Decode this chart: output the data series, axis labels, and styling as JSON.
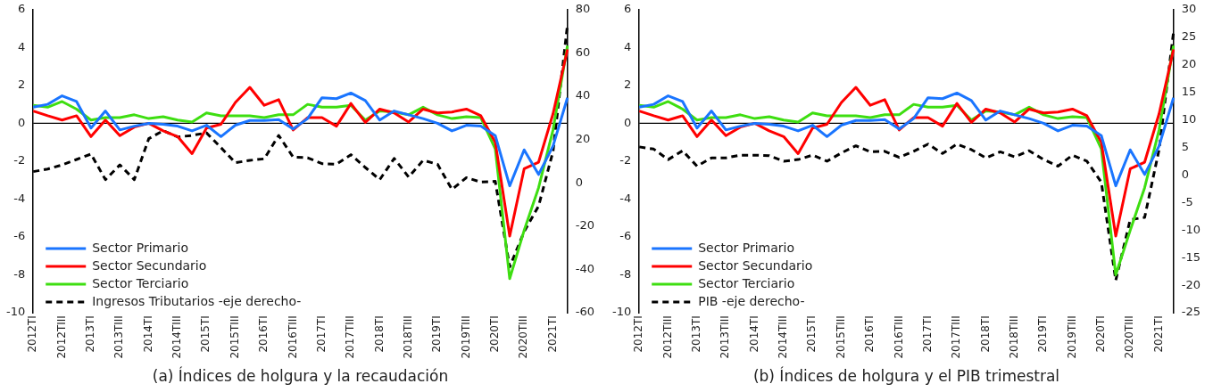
{
  "chart_data": [
    {
      "type": "line",
      "title": "(a) Índices de holgura y la recaudación",
      "categories": [
        "2012TI",
        null,
        "2012TIII",
        null,
        "2013TI",
        null,
        "2013TIII",
        null,
        "2014TI",
        null,
        "2014TIII",
        null,
        "2015TI",
        null,
        "2015TIII",
        null,
        "2016TI",
        null,
        "2016TIII",
        null,
        "2017TI",
        null,
        "2017TIII",
        null,
        "2018TI",
        null,
        "2018TIII",
        null,
        "2019TI",
        null,
        "2019TIII",
        null,
        "2020TI",
        null,
        "2020TIII",
        null,
        "2021TI",
        null
      ],
      "series": [
        {
          "name": "Sector Primario",
          "color": "#1a75ff",
          "values": [
            0.85,
            1.0,
            1.45,
            1.15,
            -0.25,
            0.65,
            -0.35,
            -0.15,
            0,
            -0.05,
            -0.15,
            -0.4,
            -0.1,
            -0.7,
            -0.1,
            0.15,
            0.15,
            0.2,
            -0.3,
            0.25,
            1.35,
            1.3,
            1.6,
            1.2,
            0.17,
            0.65,
            0.45,
            0.25,
            0,
            -0.4,
            -0.1,
            -0.15,
            -0.65,
            -3.3,
            -1.4,
            -2.7,
            -1.2,
            1.35
          ]
        },
        {
          "name": "Sector Secundario",
          "color": "#ff0000",
          "values": [
            0.65,
            0.4,
            0.17,
            0.4,
            -0.7,
            0.17,
            -0.65,
            -0.2,
            0,
            -0.4,
            -0.7,
            -1.6,
            -0.25,
            -0.05,
            1.1,
            1.9,
            0.95,
            1.25,
            -0.35,
            0.3,
            0.3,
            -0.15,
            1.05,
            0.05,
            0.75,
            0.55,
            0.07,
            0.75,
            0.55,
            0.6,
            0.75,
            0.4,
            -1.0,
            -5.95,
            -2.4,
            -2.05,
            0.5,
            3.9
          ]
        },
        {
          "name": "Sector Terciario",
          "color": "#3ede11",
          "values": [
            0.95,
            0.85,
            1.15,
            0.75,
            0.17,
            0.3,
            0.3,
            0.45,
            0.25,
            0.35,
            0.17,
            0.07,
            0.55,
            0.4,
            0.4,
            0.4,
            0.3,
            0.45,
            0.45,
            1.0,
            0.85,
            0.85,
            0.95,
            0.17,
            0.65,
            0.6,
            0.45,
            0.85,
            0.45,
            0.25,
            0.35,
            0.3,
            -1.35,
            -8.2,
            -5.65,
            -3.4,
            -0.35,
            4.1
          ]
        },
        {
          "name": "Ingresos Tributarios -eje derecho-",
          "color": "#000000",
          "axis": "y2",
          "line_style": "dashed",
          "values": [
            5.2,
            6.4,
            8.3,
            10.8,
            13.3,
            1.5,
            8.3,
            1.5,
            20.4,
            24.1,
            21.2,
            21.9,
            23.1,
            16.3,
            9.3,
            10.4,
            11.1,
            21.9,
            11.9,
            11.6,
            8.9,
            8.6,
            13.0,
            7.1,
            1.5,
            11.3,
            2.7,
            10.4,
            8.6,
            -3.0,
            2.4,
            0.4,
            0.7,
            -38.8,
            -22.5,
            -10.7,
            14.5,
            73
          ]
        }
      ],
      "ylim": [
        -10,
        6
      ],
      "yticks": [
        -10,
        -8,
        -6,
        -4,
        -2,
        0,
        2,
        4,
        6
      ],
      "y2lim": [
        -60,
        80
      ],
      "y2ticks": [
        -60,
        -40,
        -20,
        0,
        20,
        40,
        60,
        80
      ],
      "legend": "bottom left",
      "ref_lines": [
        {
          "axis": "y",
          "value": 0,
          "color": "#000000"
        }
      ]
    },
    {
      "type": "line",
      "title": "(b) Índices de holgura y el PIB trimestral",
      "categories": [
        "2012TI",
        null,
        "2012TIII",
        null,
        "2013TI",
        null,
        "2013TIII",
        null,
        "2014TI",
        null,
        "2014TIII",
        null,
        "2015TI",
        null,
        "2015TIII",
        null,
        "2016TI",
        null,
        "2016TIII",
        null,
        "2017TI",
        null,
        "2017TIII",
        null,
        "2018TI",
        null,
        "2018TIII",
        null,
        "2019TI",
        null,
        "2019TIII",
        null,
        "2020TI",
        null,
        "2020TIII",
        null,
        "2021TI",
        null
      ],
      "series": [
        {
          "name": "Sector Primario",
          "color": "#1a75ff",
          "values": [
            0.85,
            1.0,
            1.45,
            1.15,
            -0.25,
            0.65,
            -0.35,
            -0.15,
            0,
            -0.05,
            -0.15,
            -0.4,
            -0.1,
            -0.7,
            -0.1,
            0.15,
            0.15,
            0.2,
            -0.3,
            0.25,
            1.35,
            1.3,
            1.6,
            1.2,
            0.17,
            0.65,
            0.45,
            0.25,
            0,
            -0.4,
            -0.1,
            -0.15,
            -0.65,
            -3.3,
            -1.4,
            -2.7,
            -1.2,
            1.35
          ]
        },
        {
          "name": "Sector Secundario",
          "color": "#ff0000",
          "values": [
            0.65,
            0.4,
            0.17,
            0.4,
            -0.7,
            0.17,
            -0.65,
            -0.2,
            0,
            -0.4,
            -0.7,
            -1.6,
            -0.25,
            -0.05,
            1.1,
            1.9,
            0.95,
            1.25,
            -0.35,
            0.3,
            0.3,
            -0.15,
            1.05,
            0.05,
            0.75,
            0.55,
            0.07,
            0.75,
            0.55,
            0.6,
            0.75,
            0.4,
            -1.0,
            -5.95,
            -2.4,
            -2.05,
            0.5,
            3.9
          ]
        },
        {
          "name": "Sector Terciario",
          "color": "#3ede11",
          "values": [
            0.95,
            0.85,
            1.15,
            0.75,
            0.17,
            0.3,
            0.3,
            0.45,
            0.25,
            0.35,
            0.17,
            0.07,
            0.55,
            0.4,
            0.4,
            0.4,
            0.3,
            0.45,
            0.45,
            1.0,
            0.85,
            0.85,
            0.95,
            0.17,
            0.65,
            0.6,
            0.45,
            0.85,
            0.45,
            0.25,
            0.35,
            0.3,
            -1.35,
            -8.0,
            -5.65,
            -3.4,
            -0.35,
            4.1
          ]
        },
        {
          "name": "PIB -eje derecho-",
          "color": "#000000",
          "axis": "y2",
          "line_style": "dashed",
          "values": [
            5.1,
            4.7,
            2.8,
            4.4,
            1.6,
            3.1,
            3.1,
            3.6,
            3.6,
            3.5,
            2.5,
            2.8,
            3.6,
            2.5,
            4.0,
            5.3,
            4.2,
            4.3,
            3.2,
            4.3,
            5.6,
            3.9,
            5.6,
            4.6,
            3.1,
            4.2,
            3.3,
            4.4,
            2.8,
            1.6,
            3.6,
            2.5,
            -1.3,
            -19.1,
            -8.1,
            -7.7,
            4.6,
            25.9
          ]
        }
      ],
      "ylim": [
        -10,
        6
      ],
      "yticks": [
        -10,
        -8,
        -6,
        -4,
        -2,
        0,
        2,
        4,
        6
      ],
      "y2lim": [
        -25,
        30
      ],
      "y2ticks": [
        -25,
        -20,
        -15,
        -10,
        -5,
        0,
        5,
        10,
        15,
        20,
        25,
        30
      ],
      "legend": "bottom left",
      "ref_lines": [
        {
          "axis": "y",
          "value": 0,
          "color": "#000000"
        }
      ]
    }
  ]
}
